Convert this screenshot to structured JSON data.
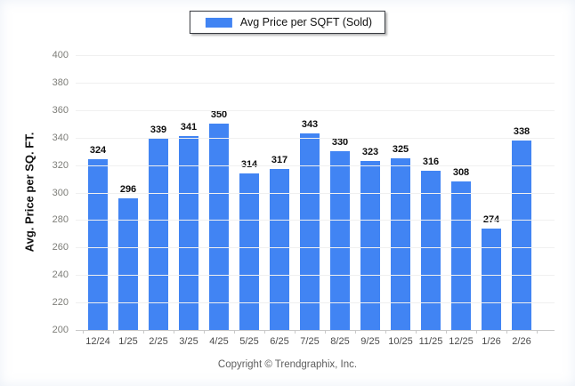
{
  "legend": {
    "label": "Avg Price per SQFT (Sold)"
  },
  "footer": {
    "copyright": "Copyright © Trendgraphix, Inc."
  },
  "colors": {
    "bar": "#4184f3",
    "grid": "#f0f0f0",
    "axis": "#c9c9c9",
    "y_tick_label": "#7d7d78",
    "x_tick_label": "#4a4a4a",
    "value_label": "#0d0d0d"
  },
  "chart_data": {
    "type": "bar",
    "title": "",
    "xlabel": "",
    "ylabel": "Avg. Price per SQ. FT.",
    "series_name": "Avg Price per SQFT (Sold)",
    "categories": [
      "12/24",
      "1/25",
      "2/25",
      "3/25",
      "4/25",
      "5/25",
      "6/25",
      "7/25",
      "8/25",
      "9/25",
      "10/25",
      "11/25",
      "12/25",
      "1/26",
      "2/26"
    ],
    "values": [
      324,
      296,
      339,
      341,
      350,
      314,
      317,
      343,
      330,
      323,
      325,
      316,
      308,
      274,
      338
    ],
    "ylim": [
      200,
      400
    ],
    "ytick_step": 20,
    "grid": true,
    "legend_position": "top-center",
    "bar_color": "#4184f3",
    "value_labels_shown": true
  }
}
